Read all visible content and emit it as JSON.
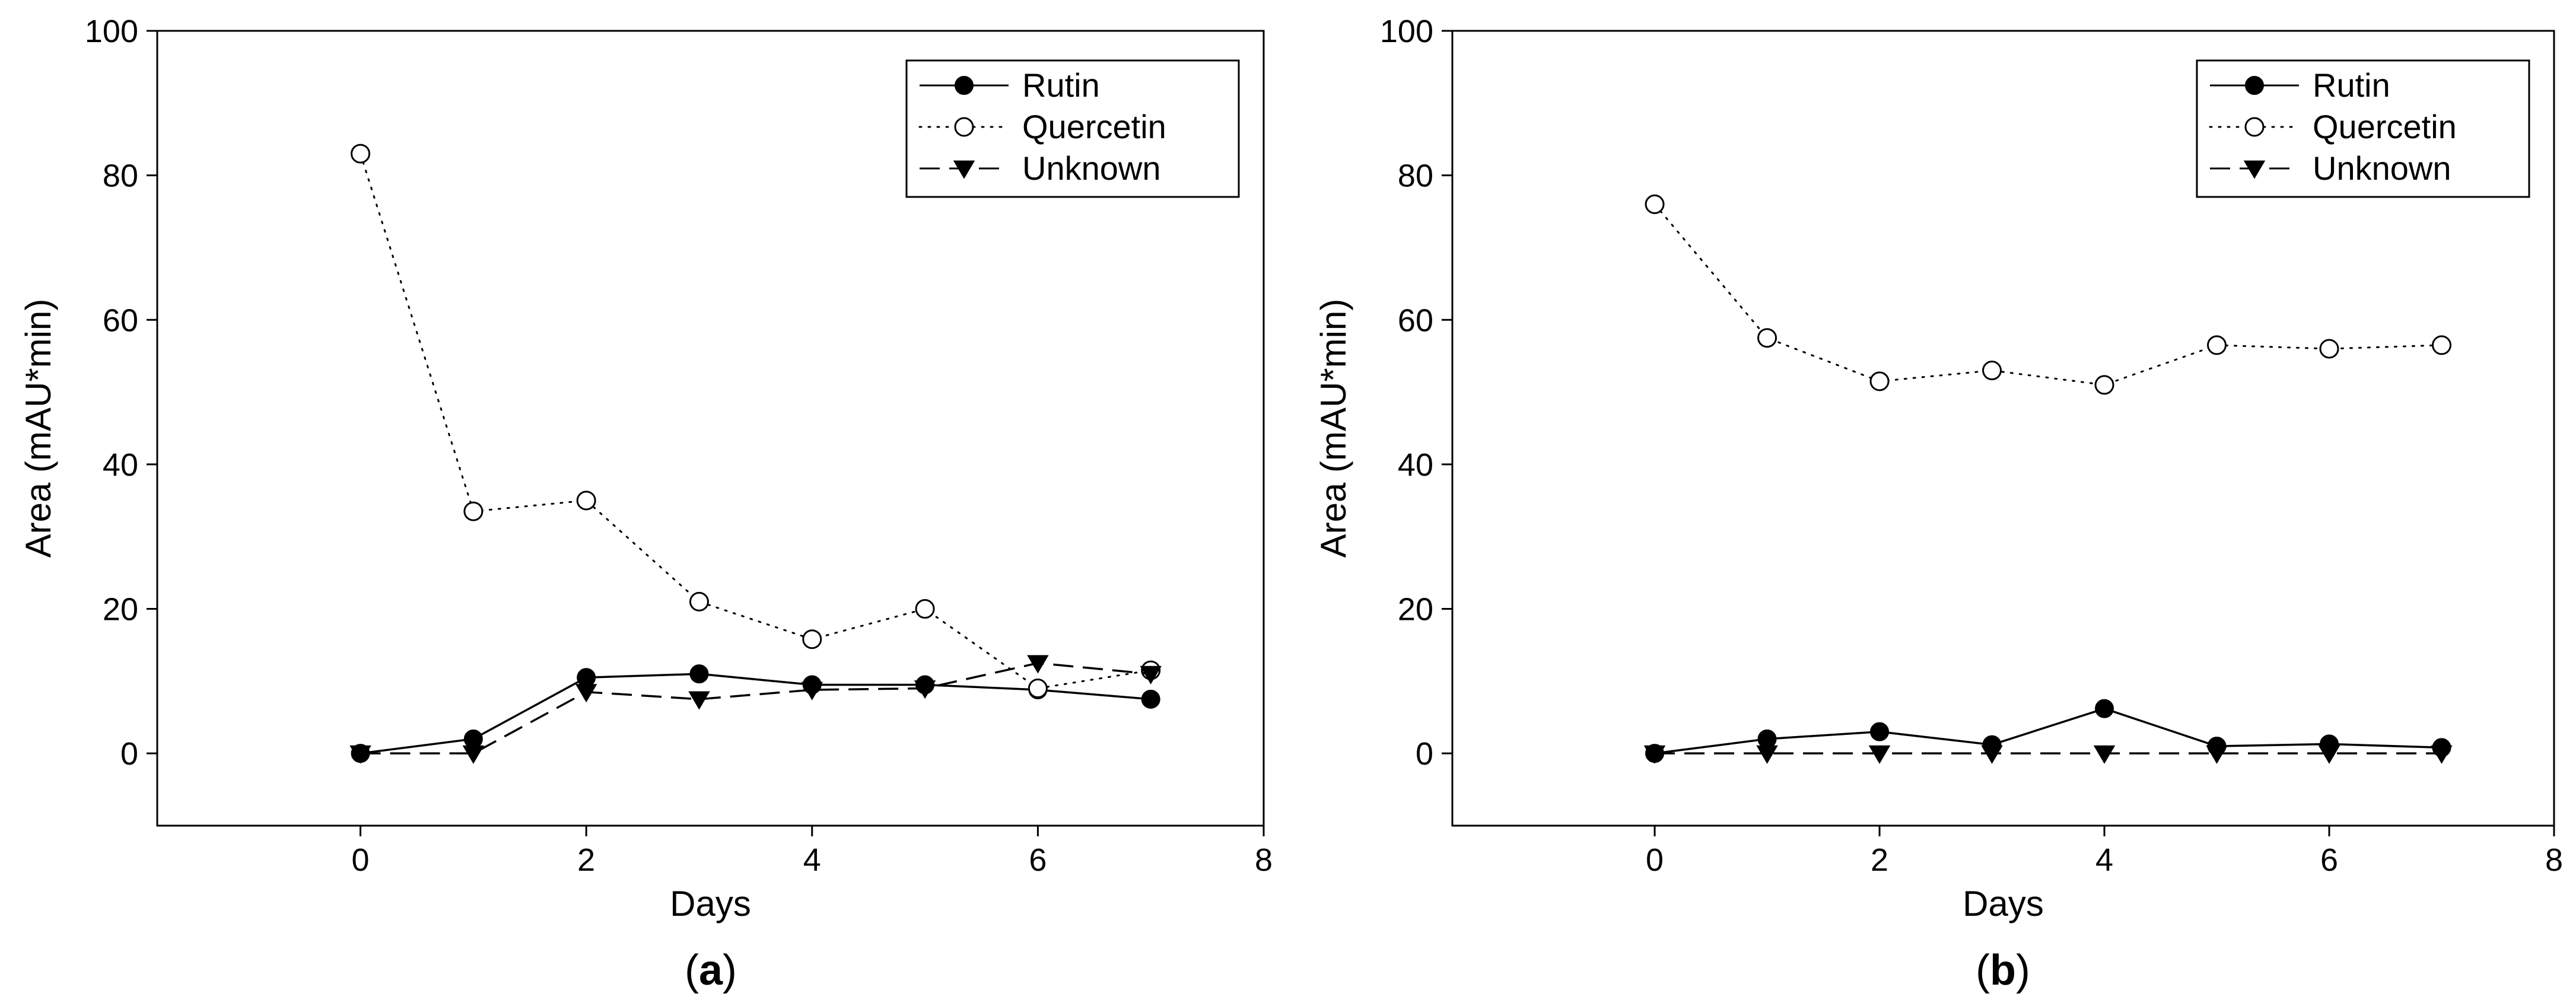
{
  "chart_data": [
    {
      "type": "line",
      "caption": {
        "open": "(",
        "letter": "a",
        "close": ")"
      },
      "xlabel": "Days",
      "ylabel": "Area (mAU*min)",
      "xlim": [
        -1.8,
        8
      ],
      "ylim": [
        -10,
        100
      ],
      "xticks": [
        0,
        2,
        4,
        6,
        8
      ],
      "yticks": [
        0,
        20,
        40,
        60,
        80,
        100
      ],
      "grid": false,
      "legend_position": "top-right",
      "x": [
        0,
        1,
        2,
        3,
        4,
        5,
        6,
        7
      ],
      "series": [
        {
          "name": "Rutin",
          "marker": "filled-circle",
          "line": "solid",
          "values": [
            0,
            2.0,
            10.5,
            11.0,
            9.5,
            9.5,
            8.8,
            7.5
          ]
        },
        {
          "name": "Quercetin",
          "marker": "open-circle",
          "line": "dotted",
          "values": [
            83.0,
            33.5,
            35.0,
            21.0,
            15.8,
            20.0,
            9.0,
            11.5
          ]
        },
        {
          "name": "Unknown",
          "marker": "filled-triangle-down",
          "line": "dashed",
          "values": [
            0,
            0,
            8.5,
            7.5,
            8.8,
            9.0,
            12.5,
            11.0
          ]
        }
      ]
    },
    {
      "type": "line",
      "caption": {
        "open": "(",
        "letter": "b",
        "close": ")"
      },
      "xlabel": "Days",
      "ylabel": "Area (mAU*min)",
      "xlim": [
        -1.8,
        8
      ],
      "ylim": [
        -10,
        100
      ],
      "xticks": [
        0,
        2,
        4,
        6,
        8
      ],
      "yticks": [
        0,
        20,
        40,
        60,
        80,
        100
      ],
      "grid": false,
      "legend_position": "top-right",
      "x": [
        0,
        1,
        2,
        3,
        4,
        5,
        6,
        7
      ],
      "series": [
        {
          "name": "Rutin",
          "marker": "filled-circle",
          "line": "solid",
          "values": [
            0,
            2.0,
            3.0,
            1.2,
            6.2,
            1.0,
            1.3,
            0.8
          ]
        },
        {
          "name": "Quercetin",
          "marker": "open-circle",
          "line": "dotted",
          "values": [
            76.0,
            57.5,
            51.5,
            53.0,
            51.0,
            56.5,
            56.0,
            56.5
          ]
        },
        {
          "name": "Unknown",
          "marker": "filled-triangle-down",
          "line": "dashed",
          "values": [
            0,
            0,
            0,
            0,
            0,
            0,
            0,
            0
          ]
        }
      ]
    }
  ]
}
